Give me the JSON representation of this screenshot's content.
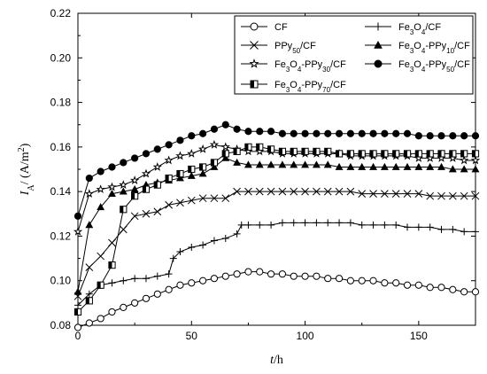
{
  "chart_data": {
    "type": "line",
    "xlabel": {
      "symbol": "t",
      "unit": "/h"
    },
    "ylabel": {
      "symbol": "I",
      "subscript": "A",
      "unit_prefix": "/ (A/m",
      "unit_sup": "2",
      "unit_suffix": ")"
    },
    "xlim": [
      0,
      175
    ],
    "ylim": [
      0.08,
      0.22
    ],
    "xticks": [
      0,
      50,
      100,
      150
    ],
    "xtick_labels": [
      "0",
      "50",
      "100",
      "150"
    ],
    "yticks": [
      0.08,
      0.1,
      0.12,
      0.14,
      0.16,
      0.18,
      0.2,
      0.22
    ],
    "ytick_labels": [
      "0.08",
      "0.10",
      "0.12",
      "0.14",
      "0.16",
      "0.18",
      "0.20",
      "0.22"
    ],
    "grid": false,
    "legend_position": "top-right",
    "series": [
      {
        "name": "CF",
        "name_parts": [
          [
            "CF",
            ""
          ]
        ],
        "marker": "circle-open",
        "x": [
          0,
          5,
          10,
          15,
          20,
          25,
          30,
          35,
          40,
          45,
          50,
          55,
          60,
          65,
          70,
          75,
          80,
          85,
          90,
          95,
          100,
          105,
          110,
          115,
          120,
          125,
          130,
          135,
          140,
          145,
          150,
          155,
          160,
          165,
          170,
          175
        ],
        "y": [
          0.079,
          0.081,
          0.083,
          0.086,
          0.088,
          0.09,
          0.092,
          0.094,
          0.096,
          0.098,
          0.099,
          0.1,
          0.101,
          0.102,
          0.103,
          0.104,
          0.104,
          0.103,
          0.103,
          0.102,
          0.102,
          0.102,
          0.101,
          0.101,
          0.1,
          0.1,
          0.1,
          0.099,
          0.099,
          0.098,
          0.098,
          0.097,
          0.097,
          0.096,
          0.095,
          0.095
        ]
      },
      {
        "name": "Fe3O4/CF",
        "name_parts": [
          [
            "Fe",
            ""
          ],
          [
            "3",
            "sub"
          ],
          [
            "O",
            ""
          ],
          [
            "4",
            "sub"
          ],
          [
            "/CF",
            ""
          ]
        ],
        "marker": "plus",
        "x": [
          0,
          5,
          10,
          15,
          20,
          25,
          30,
          35,
          40,
          42,
          45,
          50,
          55,
          60,
          65,
          70,
          72,
          75,
          80,
          85,
          90,
          95,
          100,
          105,
          110,
          115,
          120,
          125,
          130,
          135,
          140,
          145,
          150,
          155,
          160,
          165,
          170,
          175
        ],
        "y": [
          0.089,
          0.094,
          0.098,
          0.099,
          0.1,
          0.101,
          0.101,
          0.102,
          0.103,
          0.11,
          0.113,
          0.115,
          0.116,
          0.118,
          0.119,
          0.121,
          0.125,
          0.125,
          0.125,
          0.125,
          0.126,
          0.126,
          0.126,
          0.126,
          0.126,
          0.126,
          0.126,
          0.125,
          0.125,
          0.125,
          0.125,
          0.124,
          0.124,
          0.124,
          0.123,
          0.123,
          0.122,
          0.122
        ]
      },
      {
        "name": "PPy50/CF",
        "name_parts": [
          [
            "PPy",
            ""
          ],
          [
            "50",
            "sub"
          ],
          [
            "/CF",
            ""
          ]
        ],
        "marker": "x",
        "x": [
          0,
          5,
          10,
          15,
          20,
          25,
          30,
          35,
          40,
          45,
          50,
          55,
          60,
          65,
          70,
          75,
          80,
          85,
          90,
          95,
          100,
          105,
          110,
          115,
          120,
          125,
          130,
          135,
          140,
          145,
          150,
          155,
          160,
          165,
          170,
          175
        ],
        "y": [
          0.093,
          0.106,
          0.111,
          0.117,
          0.123,
          0.129,
          0.13,
          0.131,
          0.134,
          0.135,
          0.136,
          0.137,
          0.137,
          0.137,
          0.14,
          0.14,
          0.14,
          0.14,
          0.14,
          0.14,
          0.14,
          0.14,
          0.14,
          0.14,
          0.14,
          0.139,
          0.139,
          0.139,
          0.139,
          0.139,
          0.139,
          0.138,
          0.138,
          0.138,
          0.138,
          0.138
        ]
      },
      {
        "name": "Fe3O4-PPy10/CF",
        "name_parts": [
          [
            "Fe",
            ""
          ],
          [
            "3",
            "sub"
          ],
          [
            "O",
            ""
          ],
          [
            "4",
            "sub"
          ],
          [
            "-PPy",
            ""
          ],
          [
            "10",
            "sub"
          ],
          [
            "/CF",
            ""
          ]
        ],
        "marker": "triangle-filled",
        "x": [
          0,
          5,
          10,
          15,
          20,
          25,
          30,
          35,
          40,
          45,
          50,
          55,
          60,
          65,
          70,
          75,
          80,
          85,
          90,
          95,
          100,
          105,
          110,
          115,
          120,
          125,
          130,
          135,
          140,
          145,
          150,
          155,
          160,
          165,
          170,
          175
        ],
        "y": [
          0.095,
          0.125,
          0.133,
          0.139,
          0.14,
          0.141,
          0.143,
          0.144,
          0.145,
          0.146,
          0.147,
          0.148,
          0.151,
          0.155,
          0.153,
          0.152,
          0.152,
          0.152,
          0.152,
          0.152,
          0.152,
          0.152,
          0.152,
          0.151,
          0.151,
          0.151,
          0.151,
          0.151,
          0.151,
          0.151,
          0.151,
          0.151,
          0.151,
          0.15,
          0.15,
          0.15
        ]
      },
      {
        "name": "Fe3O4-PPy30/CF",
        "name_parts": [
          [
            "Fe",
            ""
          ],
          [
            "3",
            "sub"
          ],
          [
            "O",
            ""
          ],
          [
            "4",
            "sub"
          ],
          [
            "-PPy",
            ""
          ],
          [
            "30",
            "sub"
          ],
          [
            "/CF",
            ""
          ]
        ],
        "marker": "star",
        "x": [
          0,
          5,
          10,
          15,
          20,
          25,
          30,
          35,
          40,
          45,
          50,
          55,
          60,
          65,
          70,
          75,
          80,
          85,
          90,
          95,
          100,
          105,
          110,
          115,
          120,
          125,
          130,
          135,
          140,
          145,
          150,
          155,
          160,
          165,
          170,
          175
        ],
        "y": [
          0.122,
          0.139,
          0.141,
          0.142,
          0.143,
          0.145,
          0.148,
          0.151,
          0.154,
          0.156,
          0.157,
          0.159,
          0.161,
          0.16,
          0.159,
          0.158,
          0.158,
          0.158,
          0.157,
          0.157,
          0.157,
          0.157,
          0.157,
          0.157,
          0.156,
          0.156,
          0.156,
          0.156,
          0.156,
          0.156,
          0.155,
          0.155,
          0.155,
          0.155,
          0.154,
          0.154
        ]
      },
      {
        "name": "Fe3O4-PPy50/CF",
        "name_parts": [
          [
            "Fe",
            ""
          ],
          [
            "3",
            "sub"
          ],
          [
            "O",
            ""
          ],
          [
            "4",
            "sub"
          ],
          [
            "-PPy",
            ""
          ],
          [
            "50",
            "sub"
          ],
          [
            "/CF",
            ""
          ]
        ],
        "marker": "circle-filled",
        "x": [
          0,
          5,
          10,
          15,
          20,
          25,
          30,
          35,
          40,
          45,
          50,
          55,
          60,
          65,
          70,
          75,
          80,
          85,
          90,
          95,
          100,
          105,
          110,
          115,
          120,
          125,
          130,
          135,
          140,
          145,
          150,
          155,
          160,
          165,
          170,
          175
        ],
        "y": [
          0.129,
          0.146,
          0.149,
          0.151,
          0.153,
          0.155,
          0.157,
          0.159,
          0.161,
          0.163,
          0.165,
          0.166,
          0.168,
          0.17,
          0.168,
          0.167,
          0.167,
          0.167,
          0.166,
          0.166,
          0.166,
          0.166,
          0.166,
          0.166,
          0.166,
          0.166,
          0.166,
          0.166,
          0.166,
          0.166,
          0.165,
          0.165,
          0.165,
          0.165,
          0.165,
          0.165
        ]
      },
      {
        "name": "Fe3O4-PPy70/CF",
        "name_parts": [
          [
            "Fe",
            ""
          ],
          [
            "3",
            "sub"
          ],
          [
            "O",
            ""
          ],
          [
            "4",
            "sub"
          ],
          [
            "-PPy",
            ""
          ],
          [
            "70",
            "sub"
          ],
          [
            "/CF",
            ""
          ]
        ],
        "marker": "square-half",
        "x": [
          0,
          5,
          10,
          15,
          20,
          25,
          30,
          35,
          40,
          45,
          50,
          55,
          60,
          65,
          70,
          75,
          80,
          85,
          90,
          95,
          100,
          105,
          110,
          115,
          120,
          125,
          130,
          135,
          140,
          145,
          150,
          155,
          160,
          165,
          170,
          175
        ],
        "y": [
          0.086,
          0.091,
          0.098,
          0.107,
          0.132,
          0.138,
          0.141,
          0.143,
          0.146,
          0.148,
          0.15,
          0.151,
          0.153,
          0.157,
          0.158,
          0.16,
          0.16,
          0.159,
          0.158,
          0.158,
          0.158,
          0.158,
          0.158,
          0.157,
          0.157,
          0.157,
          0.157,
          0.157,
          0.157,
          0.157,
          0.157,
          0.157,
          0.157,
          0.157,
          0.157,
          0.157
        ]
      }
    ]
  }
}
